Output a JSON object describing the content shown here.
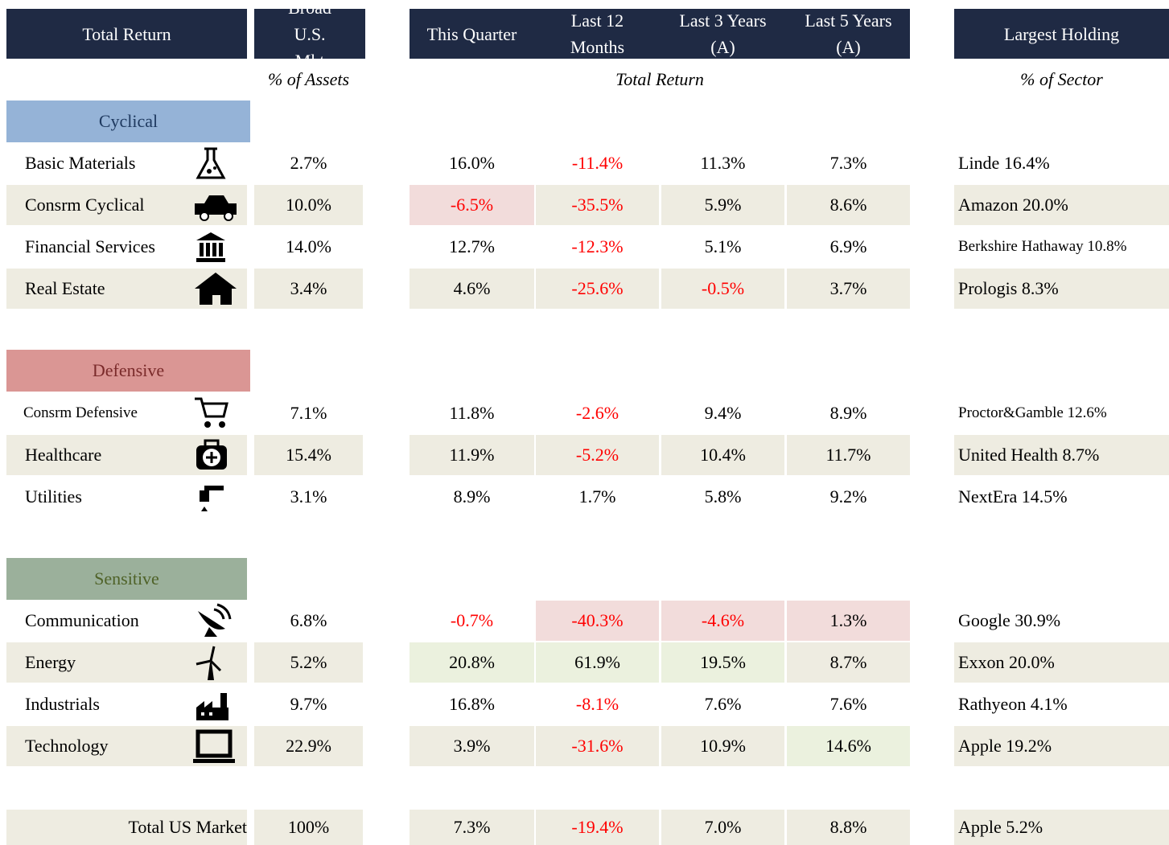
{
  "header": {
    "columns": [
      "Total Return",
      "Broad U.S. Mkt",
      "This Quarter",
      "Last 12 Months",
      "Last 3 Years (A)",
      "Last 5 Years (A)",
      "Largest Holding"
    ],
    "subheaders": [
      "% of Assets",
      "Total Return",
      "% of Sector"
    ]
  },
  "groups": [
    {
      "name": "Cyclical",
      "rows": [
        [
          "Basic Materials",
          "2.7%",
          "16.0%",
          "-11.4%",
          "11.3%",
          "7.3%",
          "Linde 16.4%"
        ],
        [
          "Consrm Cyclical",
          "10.0%",
          "-6.5%",
          "-35.5%",
          "5.9%",
          "8.6%",
          "Amazon 20.0%"
        ],
        [
          "Financial Services",
          "14.0%",
          "12.7%",
          "-12.3%",
          "5.1%",
          "6.9%",
          "Berkshire Hathaway 10.8%"
        ],
        [
          "Real Estate",
          "3.4%",
          "4.6%",
          "-25.6%",
          "-0.5%",
          "3.7%",
          "Prologis 8.3%"
        ]
      ]
    },
    {
      "name": "Defensive",
      "rows": [
        [
          "Consrm Defensive",
          "7.1%",
          "11.8%",
          "-2.6%",
          "9.4%",
          "8.9%",
          "Proctor&Gamble 12.6%"
        ],
        [
          "Healthcare",
          "15.4%",
          "11.9%",
          "-5.2%",
          "10.4%",
          "11.7%",
          "United Health 8.7%"
        ],
        [
          "Utilities",
          "3.1%",
          "8.9%",
          "1.7%",
          "5.8%",
          "9.2%",
          "NextEra 14.5%"
        ]
      ]
    },
    {
      "name": "Sensitive",
      "rows": [
        [
          "Communication",
          "6.8%",
          "-0.7%",
          "-40.3%",
          "-4.6%",
          "1.3%",
          "Google 30.9%"
        ],
        [
          "Energy",
          "5.2%",
          "20.8%",
          "61.9%",
          "19.5%",
          "8.7%",
          "Exxon 20.0%"
        ],
        [
          "Industrials",
          "9.7%",
          "16.8%",
          "-8.1%",
          "7.6%",
          "7.6%",
          "Rathyeon 4.1%"
        ],
        [
          "Technology",
          "22.9%",
          "3.9%",
          "-31.6%",
          "10.9%",
          "14.6%",
          "Apple 19.2%"
        ]
      ]
    }
  ],
  "total": [
    "Total US Market",
    "100%",
    "7.3%",
    "-19.4%",
    "7.0%",
    "8.8%",
    "Apple 5.2%"
  ]
}
